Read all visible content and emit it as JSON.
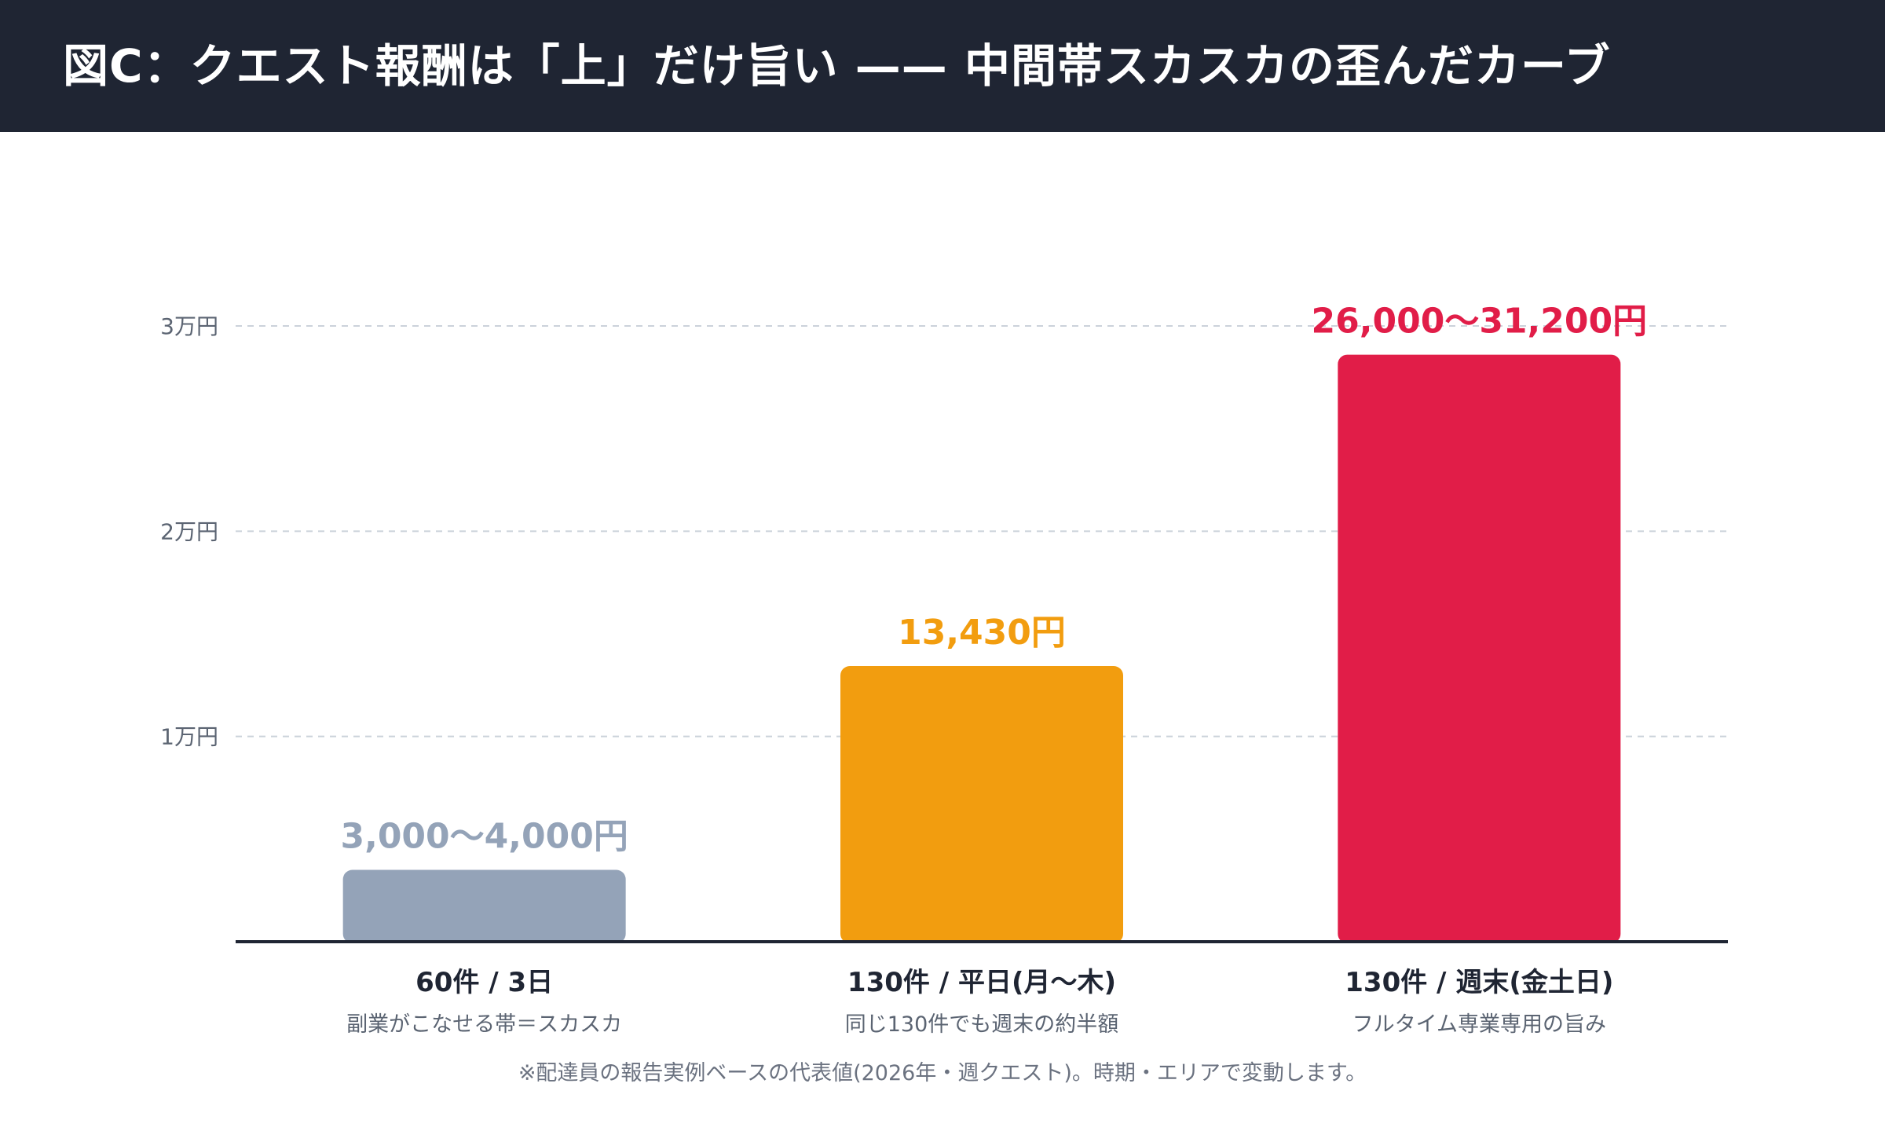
{
  "title": "図C：クエスト報酬は「上」だけ旨い —— 中間帯スカスカの歪んだカーブ",
  "footnote": "※配達員の報告実例ベースの代表値(2026年・週クエスト)。時期・エリアで変動します。",
  "chart_data": {
    "type": "bar",
    "y_ticks": [
      {
        "value": 10000,
        "label": "1万円"
      },
      {
        "value": 20000,
        "label": "2万円"
      },
      {
        "value": 30000,
        "label": "3万円"
      }
    ],
    "ylim": [
      0,
      30000
    ],
    "grid": true,
    "bars": [
      {
        "category": "60件 / 3日",
        "sublabel": "副業がこなせる帯＝スカスカ",
        "value_label": "3,000〜4,000円",
        "value": 3500,
        "color": "#94a3b8"
      },
      {
        "category": "130件 / 平日(月〜木)",
        "sublabel": "同じ130件でも週末の約半額",
        "value_label": "13,430円",
        "value": 13430,
        "color": "#f29d0f"
      },
      {
        "category": "130件 / 週末(金土日)",
        "sublabel": "フルタイム専業専用の旨み",
        "value_label": "26,000〜31,200円",
        "value": 28600,
        "color": "#e11d48"
      }
    ]
  }
}
